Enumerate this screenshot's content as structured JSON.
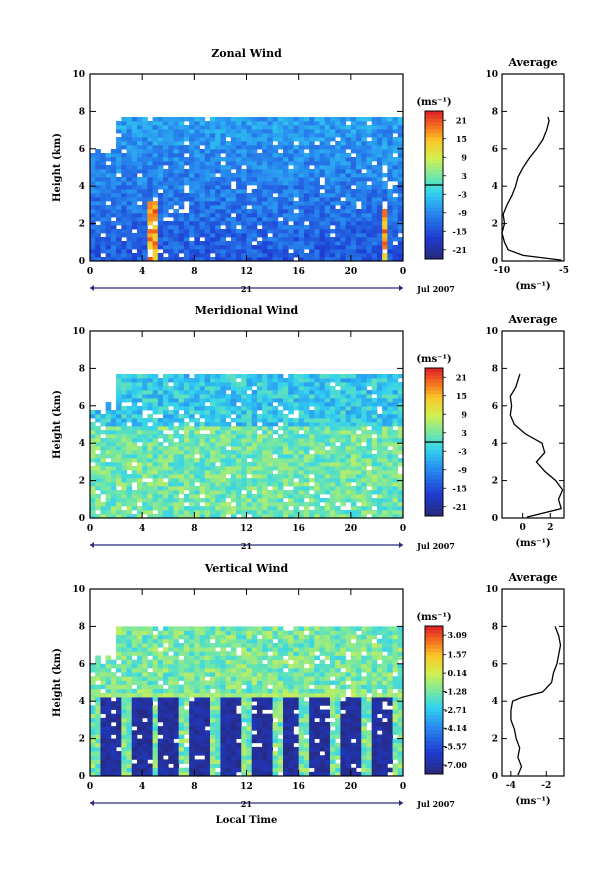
{
  "chart_data": [
    {
      "type": "heatmap",
      "title": "Zonal Wind",
      "xlabel": "",
      "ylabel": "Height (km)",
      "xlim": [
        0,
        24
      ],
      "ylim": [
        0,
        10
      ],
      "x_ticks": [
        "0",
        "4",
        "8",
        "12",
        "16",
        "20",
        "0"
      ],
      "y_ticks": [
        "0",
        "2",
        "4",
        "6",
        "8",
        "10"
      ],
      "date_day": "21",
      "date_label": "Jul 2007",
      "colorbar": {
        "unit": "(ms⁻¹)",
        "ticks": [
          "21",
          "15",
          "9",
          "3",
          "-3",
          "-9",
          "-15",
          "-21"
        ],
        "range": [
          -24,
          24
        ],
        "contour_at": 0
      },
      "data_top_km": 7.7,
      "typical_value": -12,
      "average_profile": {
        "title": "Average",
        "xlabel": "(ms⁻¹)",
        "xlim": [
          -10,
          -5
        ],
        "x_ticks": [
          "-10",
          "-5"
        ],
        "y_ticks": [
          "0",
          "2",
          "4",
          "6",
          "8",
          "10"
        ],
        "points": [
          [
            -5.2,
            0.05
          ],
          [
            -8.3,
            0.3
          ],
          [
            -9.5,
            0.6
          ],
          [
            -9.8,
            1.0
          ],
          [
            -10.0,
            1.5
          ],
          [
            -9.8,
            2.0
          ],
          [
            -9.9,
            2.5
          ],
          [
            -9.6,
            3.0
          ],
          [
            -9.2,
            3.5
          ],
          [
            -8.9,
            4.0
          ],
          [
            -8.7,
            4.5
          ],
          [
            -8.3,
            5.0
          ],
          [
            -7.8,
            5.5
          ],
          [
            -7.2,
            6.0
          ],
          [
            -6.7,
            6.5
          ],
          [
            -6.4,
            7.0
          ],
          [
            -6.2,
            7.5
          ],
          [
            -6.3,
            7.7
          ]
        ]
      }
    },
    {
      "type": "heatmap",
      "title": "Meridional Wind",
      "xlabel": "",
      "ylabel": "Height (km)",
      "xlim": [
        0,
        24
      ],
      "ylim": [
        0,
        10
      ],
      "x_ticks": [
        "0",
        "4",
        "8",
        "12",
        "16",
        "20",
        "0"
      ],
      "y_ticks": [
        "0",
        "2",
        "4",
        "6",
        "8",
        "10"
      ],
      "date_day": "21",
      "date_label": "Jul 2007",
      "colorbar": {
        "unit": "(ms⁻¹)",
        "ticks": [
          "21",
          "15",
          "9",
          "3",
          "-3",
          "-9",
          "-15",
          "-21"
        ],
        "range": [
          -24,
          24
        ],
        "contour_at": 0
      },
      "data_top_km": 7.7,
      "typical_value": 1,
      "average_profile": {
        "title": "Average",
        "xlabel": "(ms⁻¹)",
        "xlim": [
          -1.5,
          3
        ],
        "x_ticks": [
          "0",
          "2"
        ],
        "y_ticks": [
          "0",
          "2",
          "4",
          "6",
          "8",
          "10"
        ],
        "points": [
          [
            0.3,
            0.05
          ],
          [
            2.8,
            0.5
          ],
          [
            2.6,
            1.0
          ],
          [
            2.9,
            1.5
          ],
          [
            2.4,
            2.0
          ],
          [
            1.6,
            2.5
          ],
          [
            1.0,
            3.0
          ],
          [
            1.6,
            3.5
          ],
          [
            1.4,
            4.0
          ],
          [
            0.2,
            4.5
          ],
          [
            -0.6,
            5.0
          ],
          [
            -0.9,
            5.5
          ],
          [
            -0.8,
            6.0
          ],
          [
            -0.9,
            6.5
          ],
          [
            -0.5,
            7.0
          ],
          [
            -0.2,
            7.7
          ]
        ]
      }
    },
    {
      "type": "heatmap",
      "title": "Vertical Wind",
      "xlabel": "Local Time",
      "ylabel": "Height (km)",
      "xlim": [
        0,
        24
      ],
      "ylim": [
        0,
        10
      ],
      "x_ticks": [
        "0",
        "4",
        "8",
        "12",
        "16",
        "20",
        "0"
      ],
      "y_ticks": [
        "0",
        "2",
        "4",
        "6",
        "8",
        "10"
      ],
      "date_day": "21",
      "date_label": "Jul 2007",
      "colorbar": {
        "unit": "(ms⁻¹)",
        "ticks": [
          "3.09",
          "1.57",
          "0.14",
          "-1.28",
          "-2.71",
          "-4.14",
          "-5.57",
          "-7.00"
        ],
        "range": [
          -7.7,
          3.8
        ],
        "contour_at": null
      },
      "data_top_km": 8.0,
      "typical_value": -1.5,
      "average_profile": {
        "title": "Average",
        "xlabel": "(ms⁻¹)",
        "xlim": [
          -4.5,
          -1
        ],
        "x_ticks": [
          "-4",
          "-2"
        ],
        "y_ticks": [
          "0",
          "2",
          "4",
          "6",
          "8",
          "10"
        ],
        "points": [
          [
            -3.6,
            0.05
          ],
          [
            -3.4,
            0.5
          ],
          [
            -3.6,
            1.0
          ],
          [
            -3.5,
            1.5
          ],
          [
            -3.7,
            2.0
          ],
          [
            -3.8,
            2.5
          ],
          [
            -4.0,
            3.0
          ],
          [
            -4.0,
            3.5
          ],
          [
            -3.9,
            4.0
          ],
          [
            -3.4,
            4.2
          ],
          [
            -2.2,
            4.5
          ],
          [
            -1.7,
            5.0
          ],
          [
            -1.6,
            5.5
          ],
          [
            -1.4,
            6.0
          ],
          [
            -1.3,
            6.5
          ],
          [
            -1.2,
            7.0
          ],
          [
            -1.3,
            7.5
          ],
          [
            -1.5,
            8.0
          ]
        ]
      }
    }
  ]
}
